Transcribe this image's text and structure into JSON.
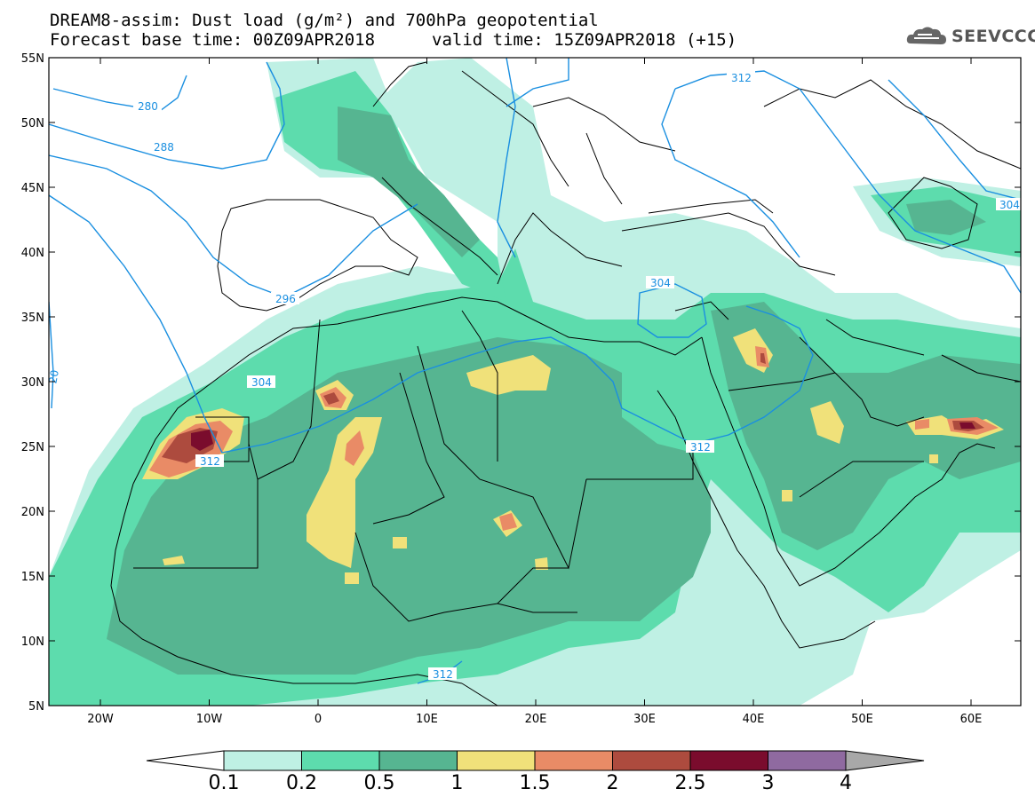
{
  "header": {
    "title_line1": "DREAM8-assim: Dust load (g/m²) and 700hPa geopotential",
    "base_time": "Forecast base time: 00Z09APR2018",
    "valid_time": "valid time: 15Z09APR2018 (+15)"
  },
  "logo": {
    "text": "SEEVCCC",
    "icon": "cloud-icon"
  },
  "axes": {
    "lat_ticks": [
      "55N",
      "50N",
      "45N",
      "40N",
      "35N",
      "30N",
      "25N",
      "20N",
      "15N",
      "10N",
      "5N"
    ],
    "lon_ticks": [
      "20W",
      "10W",
      "0",
      "10E",
      "20E",
      "30E",
      "40E",
      "50E",
      "60E"
    ]
  },
  "contour_labels": {
    "c280": "280",
    "c288": "288",
    "c296": "296",
    "c304a": "304",
    "c304b": "304",
    "c304c": "304",
    "c312a": "312",
    "c312b": "312",
    "c312c": "312",
    "c312d": "312",
    "c20": "20"
  },
  "colorbar": {
    "labels": [
      "0.1",
      "0.2",
      "0.5",
      "1",
      "1.5",
      "2",
      "2.5",
      "3",
      "4"
    ],
    "colors": [
      "#bff0e4",
      "#5ddcad",
      "#56b591",
      "#f0e17a",
      "#e98b66",
      "#ad4b3e",
      "#7a0c2d",
      "#8f6aa0",
      "#a8a8a8"
    ]
  },
  "colors": {
    "contour_line": "#1a8fe0",
    "border": "#000000"
  }
}
